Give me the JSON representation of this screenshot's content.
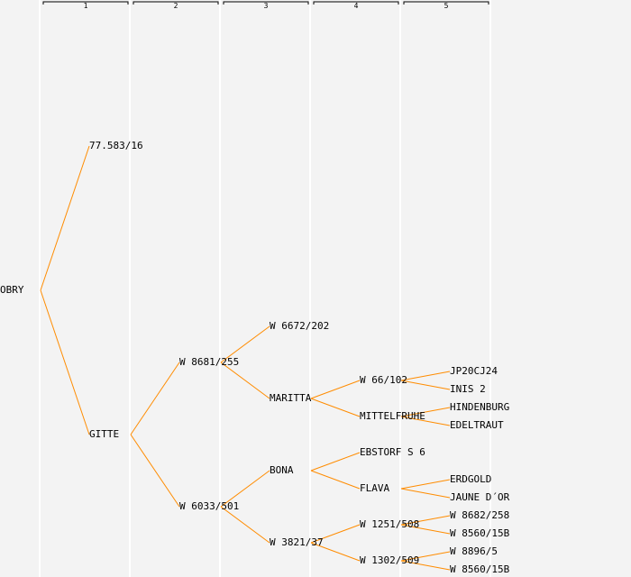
{
  "generation_headers": [
    "1",
    "2",
    "3",
    "4",
    "5"
  ],
  "colors": {
    "edge": "#ff8c00",
    "background": "#f3f3f3"
  },
  "pedigree": {
    "name": "OBRY",
    "children": [
      {
        "name": "77.583/16"
      },
      {
        "name": "GITTE",
        "children": [
          {
            "name": "W 8681/255",
            "children": [
              {
                "name": "W 6672/202"
              },
              {
                "name": "MARITTA",
                "children": [
                  {
                    "name": "W 66/102",
                    "children": [
                      {
                        "name": "JP20CJ24"
                      },
                      {
                        "name": "INIS 2"
                      }
                    ]
                  },
                  {
                    "name": "MITTELFRUHE",
                    "children": [
                      {
                        "name": "HINDENBURG"
                      },
                      {
                        "name": "EDELTRAUT"
                      }
                    ]
                  }
                ]
              }
            ]
          },
          {
            "name": "W 6033/501",
            "children": [
              {
                "name": "BONA",
                "children": [
                  {
                    "name": "EBSTORF S 6"
                  },
                  {
                    "name": "FLAVA",
                    "children": [
                      {
                        "name": "ERDGOLD"
                      },
                      {
                        "name": "JAUNE D´OR"
                      }
                    ]
                  }
                ]
              },
              {
                "name": "W 3821/37",
                "children": [
                  {
                    "name": "W 1251/508",
                    "children": [
                      {
                        "name": "W 8682/258"
                      },
                      {
                        "name": "W 8560/15B"
                      }
                    ]
                  },
                  {
                    "name": "W 1302/509",
                    "children": [
                      {
                        "name": "W 8896/5"
                      },
                      {
                        "name": "W 8560/15B"
                      }
                    ]
                  }
                ]
              }
            ]
          }
        ]
      }
    ]
  }
}
